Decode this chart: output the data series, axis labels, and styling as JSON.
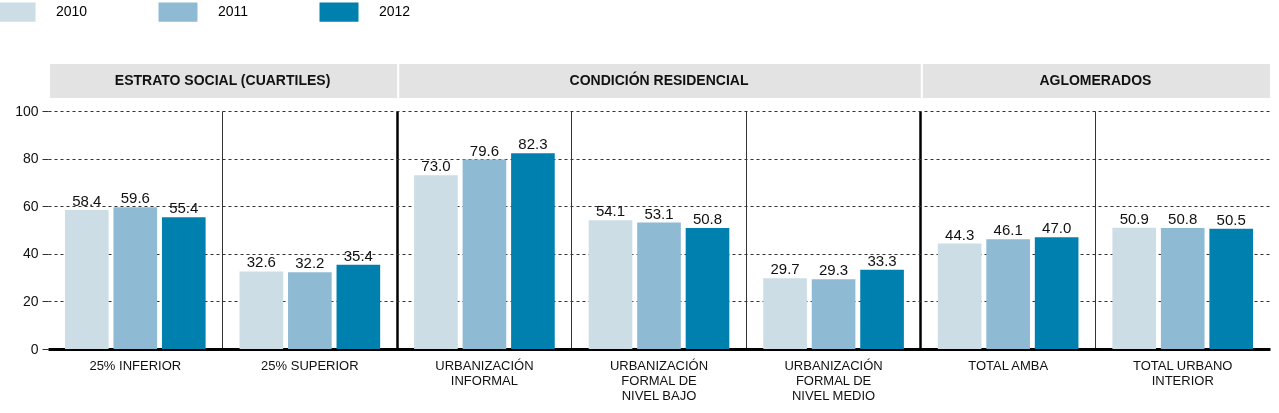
{
  "chart_data": {
    "type": "bar",
    "categories": [
      "25% INFERIOR",
      "25% SUPERIOR",
      "URBANIZACIÓN INFORMAL",
      "URBANIZACIÓN FORMAL DE NIVEL BAJO",
      "URBANIZACIÓN FORMAL DE NIVEL MEDIO",
      "TOTAL AMBA",
      "TOTAL URBANO INTERIOR"
    ],
    "series": [
      {
        "name": "2010",
        "color": "#ccdde6",
        "values": [
          58.4,
          32.6,
          73.0,
          54.1,
          29.7,
          44.3,
          50.9
        ],
        "value_labels": [
          "58.4",
          "32.6",
          "73.0",
          "54.1",
          "29.7",
          "44.3",
          "50.9"
        ]
      },
      {
        "name": "2011",
        "color": "#8fbad3",
        "values": [
          59.6,
          32.2,
          79.6,
          53.1,
          29.3,
          46.1,
          50.8
        ],
        "value_labels": [
          "59.6",
          "32.2",
          "79.6",
          "53.1",
          "29.3",
          "46.1",
          "50.8"
        ]
      },
      {
        "name": "2012",
        "color": "#0080ae",
        "values": [
          55.4,
          35.4,
          82.3,
          50.8,
          33.3,
          47.0,
          50.5
        ],
        "value_labels": [
          "55.4",
          "35.4",
          "82.3",
          "50.8",
          "33.3",
          "47.0",
          "50.5"
        ]
      }
    ],
    "annotations": [
      "ESTRATO SOCIAL (CUARTILES)",
      "CONDICIÓN RESIDENCIAL",
      "AGLOMERADOS"
    ],
    "ylim": [
      0,
      100
    ],
    "yticks": [
      0,
      20,
      40,
      60,
      80,
      100
    ],
    "grid": "y",
    "legend": "top left"
  }
}
